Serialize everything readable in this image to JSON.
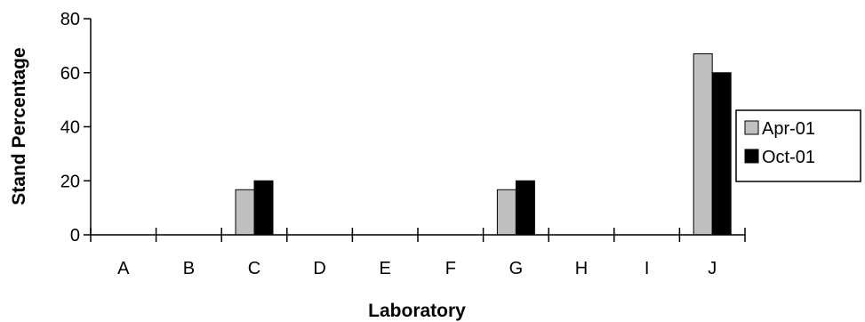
{
  "chart_data": {
    "type": "bar",
    "title": "",
    "xlabel": "Laboratory",
    "ylabel": "Stand Percentage",
    "categories": [
      "A",
      "B",
      "C",
      "D",
      "E",
      "F",
      "G",
      "H",
      "I",
      "J"
    ],
    "series": [
      {
        "name": "Apr-01",
        "color": "#c0c0c0",
        "values": [
          0,
          0,
          16.7,
          0,
          0,
          0,
          16.7,
          0,
          0,
          67
        ]
      },
      {
        "name": "Oct-01",
        "color": "#000000",
        "values": [
          0,
          0,
          20,
          0,
          0,
          0,
          20,
          0,
          0,
          60
        ]
      }
    ],
    "ylim": [
      0,
      80
    ],
    "yticks": [
      0,
      20,
      40,
      60,
      80
    ],
    "grid": false,
    "legend_position": "right"
  }
}
